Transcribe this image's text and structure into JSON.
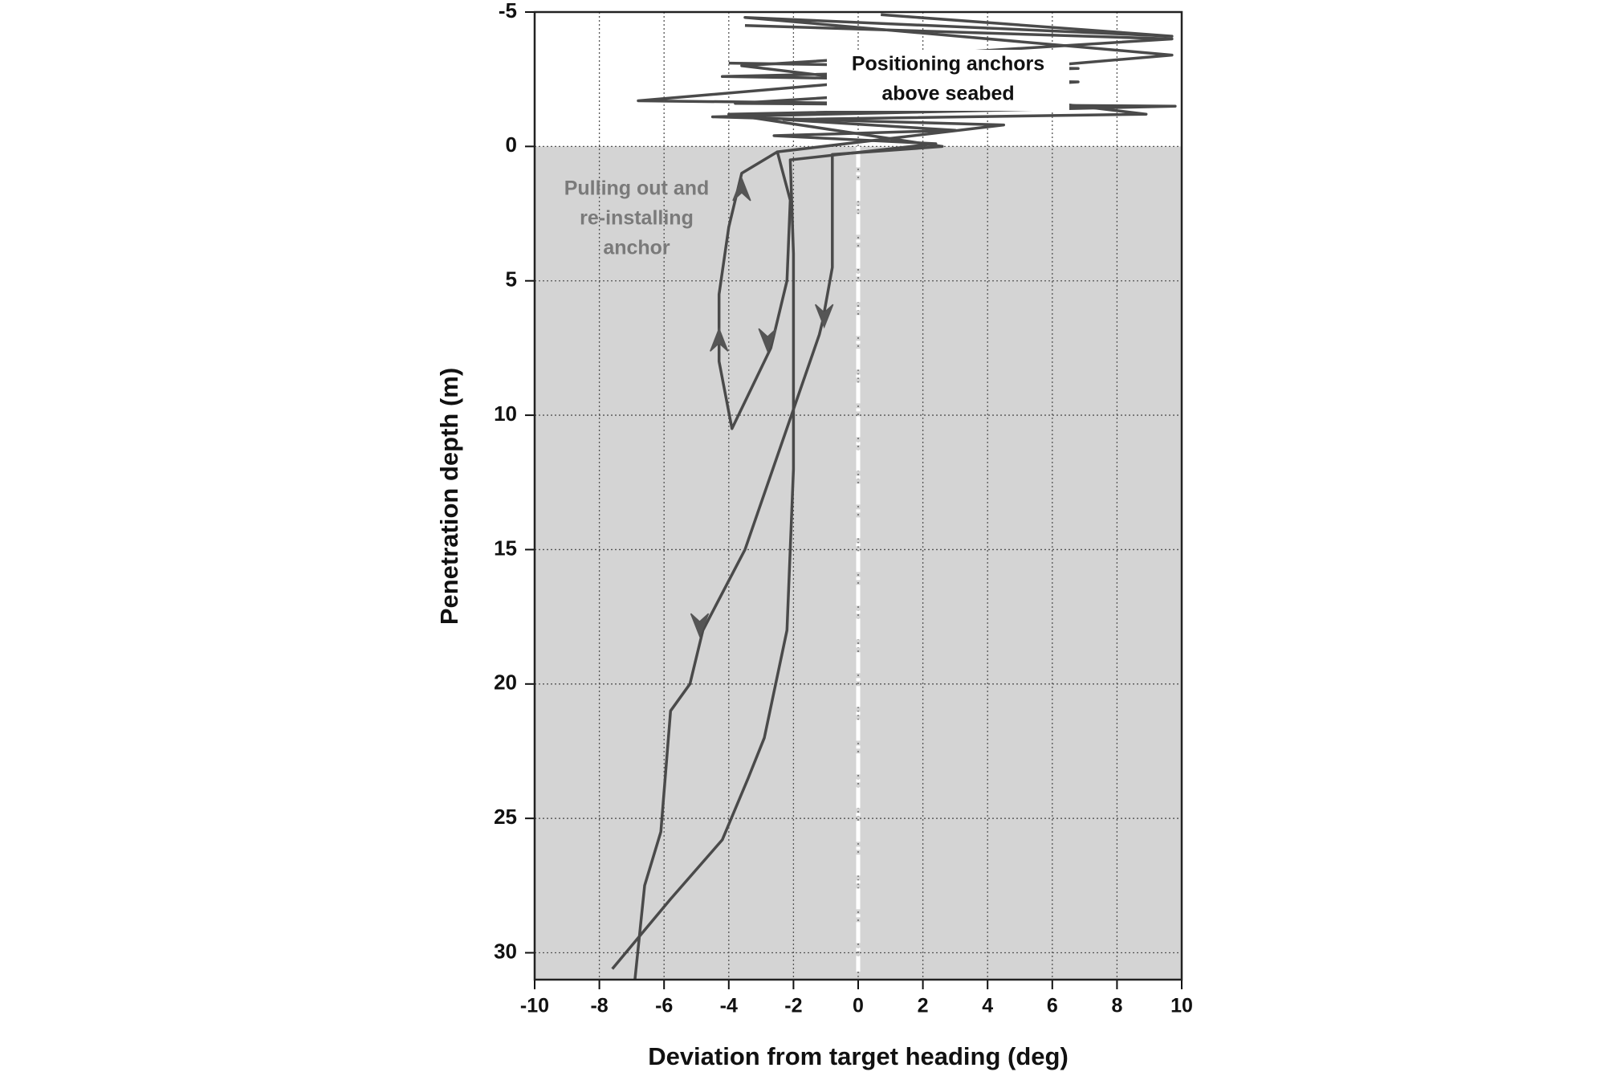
{
  "chart_data": {
    "type": "line",
    "x_label": "Deviation from target heading (deg)",
    "y_label": "Penetration depth (m)",
    "xlim": [
      -10,
      10
    ],
    "xticks": [
      -10,
      -8,
      -6,
      -4,
      -2,
      0,
      2,
      4,
      6,
      8,
      10
    ],
    "ylim": [
      31,
      -5
    ],
    "yticks": [
      -5,
      0,
      5,
      10,
      15,
      20,
      25,
      30
    ],
    "grid": true,
    "shaded_span": [
      0,
      31
    ],
    "shade_color": "#d4d4d4",
    "reference_x": 0,
    "annotations": [
      {
        "lines": [
          "Positioning anchors",
          "above seabed"
        ],
        "color": "#111111"
      },
      {
        "lines": [
          "Pulling out and",
          "re-installing",
          "anchor"
        ],
        "color": "#7a7a7a"
      }
    ],
    "series": [
      {
        "color": "#4a4a4a",
        "x": [
          -4.0,
          6.8,
          -4.2,
          6.8,
          -3.8,
          9.8,
          -4.5,
          4.5,
          -2.5,
          -2.1,
          -2.2,
          -2.7,
          -3.9,
          -4.3,
          -4.3,
          -4.0,
          -3.6,
          -2.5
        ],
        "values": [
          -3.1,
          -2.9,
          -2.6,
          -2.4,
          -1.6,
          -1.5,
          -1.1,
          -0.8,
          0.2,
          2,
          5,
          7.5,
          10.5,
          8,
          5.5,
          3,
          1,
          0.2
        ]
      },
      {
        "color": "#4a4a4a",
        "x": [
          0.7,
          9.7,
          -3.5,
          9.7,
          -6.8,
          8.0,
          -4.0,
          2.6,
          -0.8,
          -0.8,
          -0.8,
          -1.1,
          -1.2,
          -3.5,
          -4.8,
          -5.2,
          -5.8,
          -6.1,
          -6.6,
          -6.9
        ],
        "values": [
          -4.9,
          -4.1,
          -4.8,
          -3.4,
          -1.7,
          -1.5,
          -1.2,
          0.0,
          0.3,
          2,
          4.5,
          6.5,
          7,
          15,
          18,
          20,
          21,
          25.5,
          27.5,
          31
        ]
      },
      {
        "color": "#4a4a4a",
        "x": [
          -3.5,
          9.7,
          -3.6,
          8.9,
          -2.3,
          3.0,
          -2.6,
          2.4,
          -2.1,
          -2.0,
          -2.0,
          -2.0,
          -2.2,
          -2.9,
          -3.4,
          -4.2,
          -5.8,
          -7.6
        ],
        "values": [
          -4.5,
          -4.0,
          -3.0,
          -1.2,
          -1.0,
          -0.6,
          -0.4,
          -0.1,
          0.5,
          4,
          10,
          12,
          18,
          22,
          23.5,
          25.8,
          28,
          30.6
        ]
      }
    ]
  }
}
